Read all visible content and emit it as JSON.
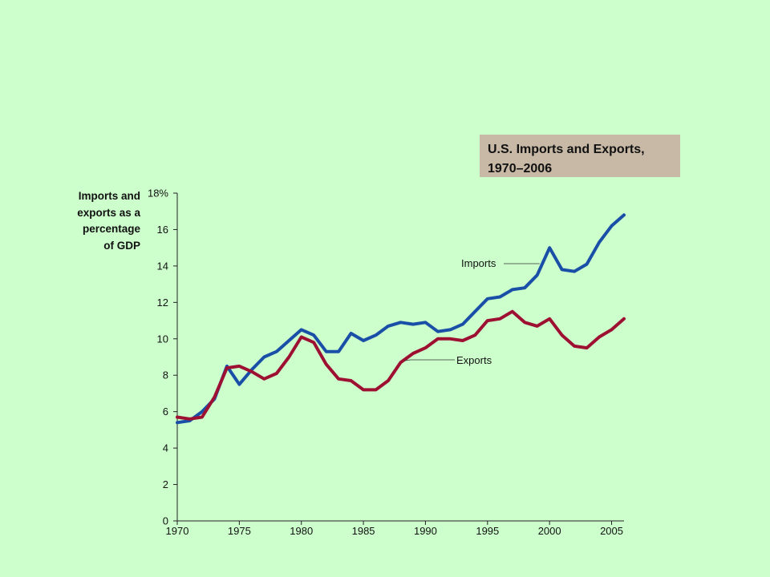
{
  "title_lines": [
    "U.S. Imports and Exports,",
    "1970–2006"
  ],
  "ylabel_lines": [
    "Imports and",
    "exports as a",
    "percentage",
    "of GDP"
  ],
  "chart_data": {
    "type": "line",
    "title": "U.S. Imports and Exports, 1970–2006",
    "ylabel": "Imports and exports as a percentage of GDP",
    "xlabel": "",
    "xlim": [
      1970,
      2006
    ],
    "ylim": [
      0,
      18
    ],
    "x_ticks": [
      1970,
      1975,
      1980,
      1985,
      1990,
      1995,
      2000,
      2005
    ],
    "y_ticks": [
      0,
      2,
      4,
      6,
      8,
      10,
      12,
      14,
      16,
      18
    ],
    "y_tick_labels": [
      "0",
      "2",
      "4",
      "6",
      "8",
      "10",
      "12",
      "14",
      "16",
      "18%"
    ],
    "x": [
      1970,
      1971,
      1972,
      1973,
      1974,
      1975,
      1976,
      1977,
      1978,
      1979,
      1980,
      1981,
      1982,
      1983,
      1984,
      1985,
      1986,
      1987,
      1988,
      1989,
      1990,
      1991,
      1992,
      1993,
      1994,
      1995,
      1996,
      1997,
      1998,
      1999,
      2000,
      2001,
      2002,
      2003,
      2004,
      2005,
      2006
    ],
    "series": [
      {
        "name": "Imports",
        "color": "#1a4fa8",
        "values": [
          5.4,
          5.5,
          6.0,
          6.7,
          8.5,
          7.5,
          8.3,
          9.0,
          9.3,
          9.9,
          10.5,
          10.2,
          9.3,
          9.3,
          10.3,
          9.9,
          10.2,
          10.7,
          10.9,
          10.8,
          10.9,
          10.4,
          10.5,
          10.8,
          11.5,
          12.2,
          12.3,
          12.7,
          12.8,
          13.5,
          15.0,
          13.8,
          13.7,
          14.1,
          15.3,
          16.2,
          16.8
        ]
      },
      {
        "name": "Exports",
        "color": "#9e1032",
        "values": [
          5.7,
          5.6,
          5.7,
          6.8,
          8.4,
          8.5,
          8.2,
          7.8,
          8.1,
          9.0,
          10.1,
          9.8,
          8.6,
          7.8,
          7.7,
          7.2,
          7.2,
          7.7,
          8.7,
          9.2,
          9.5,
          10.0,
          10.0,
          9.9,
          10.2,
          11.0,
          11.1,
          11.5,
          10.9,
          10.7,
          11.1,
          10.2,
          9.6,
          9.5,
          10.1,
          10.5,
          11.1
        ]
      }
    ],
    "annotations": [
      "Imports",
      "Exports"
    ],
    "grid": false,
    "legend": "none"
  }
}
